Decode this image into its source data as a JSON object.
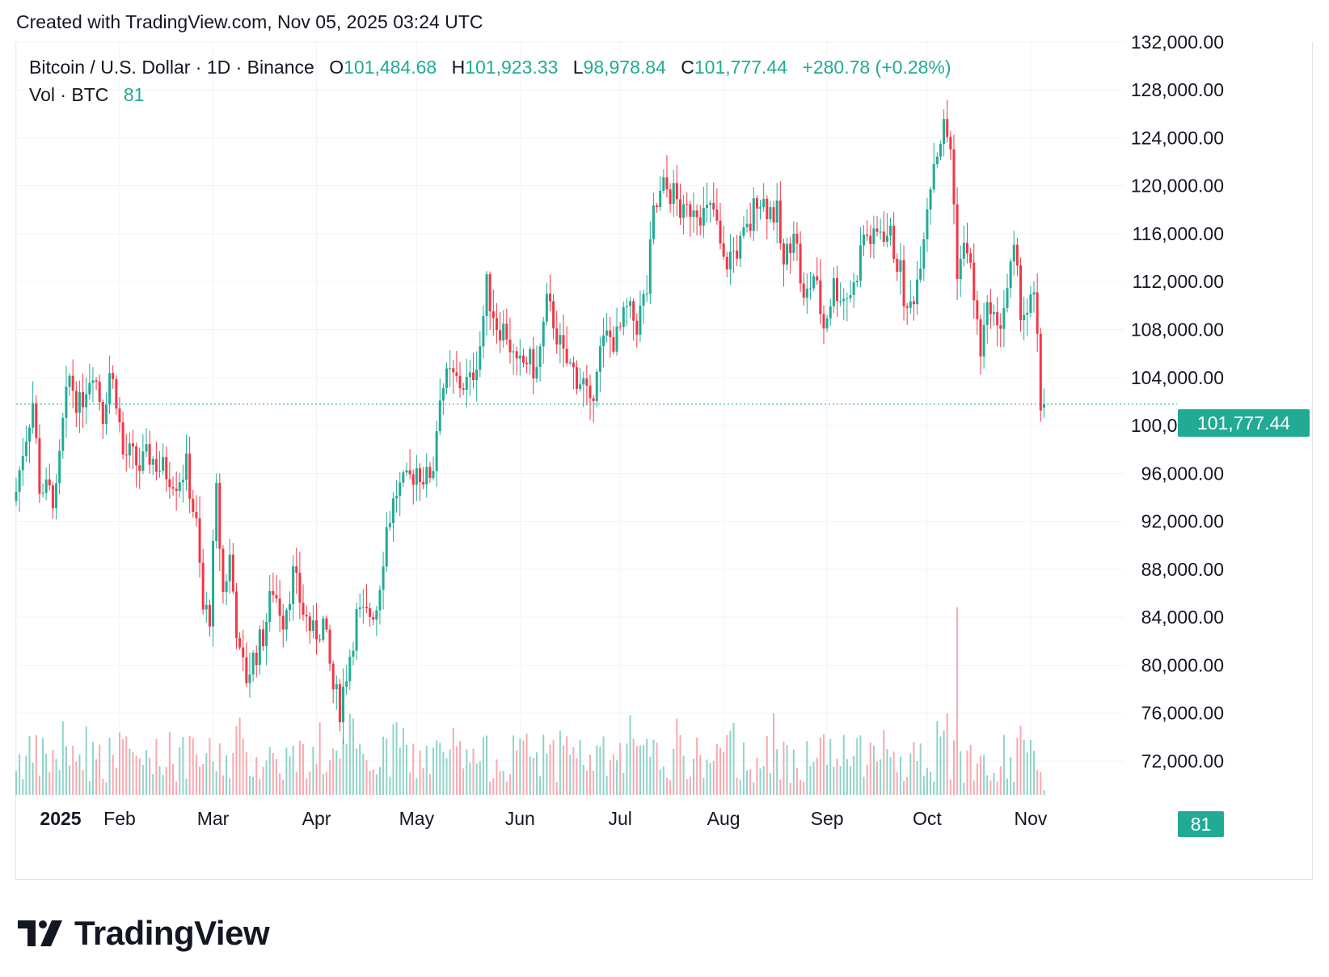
{
  "header": {
    "text": "Created with TradingView.com, Nov 05, 2025 03:24 UTC"
  },
  "legend": {
    "symbol": "Bitcoin / U.S. Dollar · 1D · Binance",
    "o_label": "O",
    "o_value": "101,484.68",
    "h_label": "H",
    "h_value": "101,923.33",
    "l_label": "L",
    "l_value": "98,978.84",
    "c_label": "C",
    "c_value": "101,777.44",
    "change": "+280.78 (+0.28%)",
    "vol_label": "Vol · BTC",
    "vol_value": "81"
  },
  "price_tag": "101,777.44",
  "vol_tag": "81",
  "brand": {
    "name": "TradingView",
    "logo_icon": "tradingview-logo-icon"
  },
  "colors": {
    "up": "#22ab94",
    "down": "#f23645",
    "up_volume": "#8fd3c9",
    "down_volume": "#f9a9ae",
    "grid": "#f0f3fa",
    "text": "#131722"
  },
  "chart_data": {
    "type": "candlestick",
    "title": "Bitcoin / U.S. Dollar · 1D · Binance",
    "ylim": [
      68000,
      132000
    ],
    "y_ticks": [
      72000,
      76000,
      80000,
      84000,
      88000,
      92000,
      96000,
      100000,
      104000,
      108000,
      112000,
      116000,
      120000,
      124000,
      128000,
      132000
    ],
    "y_tick_labels": [
      "72,000.00",
      "76,000.00",
      "80,000.00",
      "84,000.00",
      "88,000.00",
      "92,000.00",
      "96,000.00",
      "100,000.00",
      "104,000.00",
      "108,000.00",
      "112,000.00",
      "116,000.00",
      "120,000.00",
      "124,000.00",
      "128,000.00",
      "132,000.00"
    ],
    "x_start": "2025-01-01",
    "x_end": "2025-11-05",
    "x_ticks": [
      {
        "date": "2025-01-01",
        "label": "2025",
        "bold": true
      },
      {
        "date": "2025-02-01",
        "label": "Feb"
      },
      {
        "date": "2025-03-01",
        "label": "Mar"
      },
      {
        "date": "2025-04-01",
        "label": "Apr"
      },
      {
        "date": "2025-05-01",
        "label": "May"
      },
      {
        "date": "2025-06-01",
        "label": "Jun"
      },
      {
        "date": "2025-07-01",
        "label": "Jul"
      },
      {
        "date": "2025-08-01",
        "label": "Aug"
      },
      {
        "date": "2025-09-01",
        "label": "Sep"
      },
      {
        "date": "2025-10-01",
        "label": "Oct"
      },
      {
        "date": "2025-11-01",
        "label": "Nov"
      }
    ],
    "last_price": 101777.44,
    "closes": [
      [
        "2025-01-01",
        94500
      ],
      [
        "2025-01-03",
        98000
      ],
      [
        "2025-01-06",
        102000
      ],
      [
        "2025-01-08",
        95000
      ],
      [
        "2025-01-10",
        94500
      ],
      [
        "2025-01-13",
        94000
      ],
      [
        "2025-01-15",
        100000
      ],
      [
        "2025-01-17",
        104000
      ],
      [
        "2025-01-20",
        101500
      ],
      [
        "2025-01-22",
        103500
      ],
      [
        "2025-01-24",
        105000
      ],
      [
        "2025-01-27",
        101000
      ],
      [
        "2025-01-29",
        104500
      ],
      [
        "2025-01-31",
        102500
      ],
      [
        "2025-02-02",
        97500
      ],
      [
        "2025-02-04",
        97500
      ],
      [
        "2025-02-07",
        96500
      ],
      [
        "2025-02-10",
        97500
      ],
      [
        "2025-02-13",
        96500
      ],
      [
        "2025-02-16",
        96000
      ],
      [
        "2025-02-18",
        95500
      ],
      [
        "2025-02-21",
        96500
      ],
      [
        "2025-02-24",
        91500
      ],
      [
        "2025-02-26",
        84500
      ],
      [
        "2025-02-28",
        84300
      ],
      [
        "2025-03-02",
        94200
      ],
      [
        "2025-03-04",
        86000
      ],
      [
        "2025-03-06",
        89000
      ],
      [
        "2025-03-09",
        80500
      ],
      [
        "2025-03-11",
        79000
      ],
      [
        "2025-03-13",
        80500
      ],
      [
        "2025-03-16",
        82500
      ],
      [
        "2025-03-19",
        86500
      ],
      [
        "2025-03-22",
        84000
      ],
      [
        "2025-03-25",
        87500
      ],
      [
        "2025-03-28",
        84500
      ],
      [
        "2025-03-31",
        82500
      ],
      [
        "2025-04-03",
        83500
      ],
      [
        "2025-04-06",
        78000
      ],
      [
        "2025-04-08",
        76500
      ],
      [
        "2025-04-10",
        79500
      ],
      [
        "2025-04-13",
        84000
      ],
      [
        "2025-04-16",
        84000
      ],
      [
        "2025-04-19",
        85000
      ],
      [
        "2025-04-22",
        91500
      ],
      [
        "2025-04-25",
        94500
      ],
      [
        "2025-04-28",
        95000
      ],
      [
        "2025-05-01",
        96500
      ],
      [
        "2025-05-04",
        95500
      ],
      [
        "2025-05-06",
        96800
      ],
      [
        "2025-05-08",
        103000
      ],
      [
        "2025-05-11",
        104000
      ],
      [
        "2025-05-14",
        103500
      ],
      [
        "2025-05-17",
        103500
      ],
      [
        "2025-05-20",
        106800
      ],
      [
        "2025-05-22",
        111500
      ],
      [
        "2025-05-25",
        108500
      ],
      [
        "2025-05-28",
        107800
      ],
      [
        "2025-05-31",
        104500
      ],
      [
        "2025-06-03",
        105500
      ],
      [
        "2025-06-06",
        104500
      ],
      [
        "2025-06-09",
        110000
      ],
      [
        "2025-06-11",
        108800
      ],
      [
        "2025-06-14",
        105500
      ],
      [
        "2025-06-17",
        104500
      ],
      [
        "2025-06-20",
        103500
      ],
      [
        "2025-06-22",
        101000
      ],
      [
        "2025-06-24",
        105500
      ],
      [
        "2025-06-27",
        107300
      ],
      [
        "2025-06-30",
        107200
      ],
      [
        "2025-07-03",
        109500
      ],
      [
        "2025-07-06",
        108500
      ],
      [
        "2025-07-09",
        111300
      ],
      [
        "2025-07-11",
        117500
      ],
      [
        "2025-07-14",
        119800
      ],
      [
        "2025-07-17",
        119300
      ],
      [
        "2025-07-20",
        117300
      ],
      [
        "2025-07-23",
        118700
      ],
      [
        "2025-07-26",
        117600
      ],
      [
        "2025-07-29",
        117900
      ],
      [
        "2025-08-01",
        113300
      ],
      [
        "2025-08-03",
        114200
      ],
      [
        "2025-08-06",
        115000
      ],
      [
        "2025-08-09",
        116700
      ],
      [
        "2025-08-11",
        119300
      ],
      [
        "2025-08-14",
        118300
      ],
      [
        "2025-08-17",
        117500
      ],
      [
        "2025-08-19",
        113000
      ],
      [
        "2025-08-22",
        116900
      ],
      [
        "2025-08-25",
        110100
      ],
      [
        "2025-08-28",
        112600
      ],
      [
        "2025-08-31",
        108300
      ],
      [
        "2025-09-03",
        111700
      ],
      [
        "2025-09-06",
        110700
      ],
      [
        "2025-09-09",
        111500
      ],
      [
        "2025-09-12",
        116000
      ],
      [
        "2025-09-15",
        115300
      ],
      [
        "2025-09-17",
        116500
      ],
      [
        "2025-09-20",
        115700
      ],
      [
        "2025-09-23",
        112700
      ],
      [
        "2025-09-25",
        109000
      ],
      [
        "2025-09-28",
        112200
      ],
      [
        "2025-10-01",
        118600
      ],
      [
        "2025-10-03",
        122200
      ],
      [
        "2025-10-06",
        124800
      ],
      [
        "2025-10-08",
        123300
      ],
      [
        "2025-10-10",
        113200
      ],
      [
        "2025-10-13",
        115200
      ],
      [
        "2025-10-16",
        108200
      ],
      [
        "2025-10-17",
        106400
      ],
      [
        "2025-10-20",
        110500
      ],
      [
        "2025-10-22",
        107500
      ],
      [
        "2025-10-25",
        111500
      ],
      [
        "2025-10-27",
        114100
      ],
      [
        "2025-10-29",
        110000
      ],
      [
        "2025-10-31",
        109500
      ],
      [
        "2025-11-02",
        110500
      ],
      [
        "2025-11-03",
        106500
      ],
      [
        "2025-11-04",
        101500
      ],
      [
        "2025-11-05",
        101777
      ]
    ],
    "volume_peak": {
      "date": "2025-10-10",
      "label": "highest volume"
    }
  }
}
